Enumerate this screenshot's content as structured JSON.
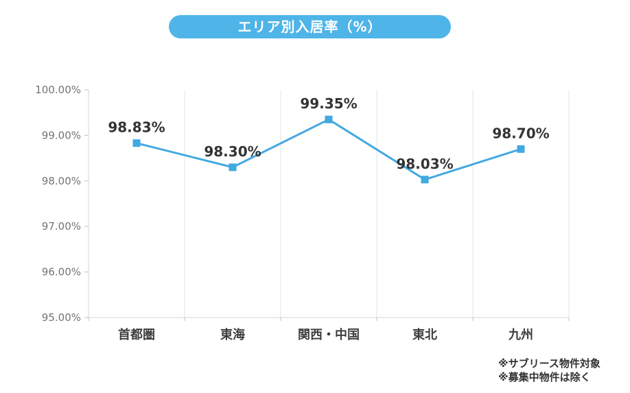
{
  "title": {
    "text": "エリア別入居率（%）"
  },
  "notes": [
    "※サブリース物件対象",
    "※募集中物件は除く"
  ],
  "chart_data": {
    "type": "line",
    "title": "エリア別入居率（%）",
    "xlabel": "",
    "ylabel": "",
    "categories": [
      "首都圏",
      "東海",
      "関西・中国",
      "東北",
      "九州"
    ],
    "values": [
      98.83,
      98.3,
      99.35,
      98.03,
      98.7
    ],
    "labels": [
      "98.83%",
      "98.30%",
      "99.35%",
      "98.03%",
      "98.70%"
    ],
    "ylim": [
      95,
      100
    ],
    "yticks": [
      {
        "value": 100,
        "label": "100.00%"
      },
      {
        "value": 99,
        "label": "99.00%"
      },
      {
        "value": 98,
        "label": "98.00%"
      },
      {
        "value": 97,
        "label": "97.00%"
      },
      {
        "value": 96,
        "label": "96.00%"
      },
      {
        "value": 95,
        "label": "95.00%"
      }
    ],
    "grid": "vertical-only",
    "legend": "none",
    "marker": "square",
    "colors": {
      "badge_background": "#4FB4E8",
      "badge_text": "#FFFFFF",
      "line": "#41A9E1",
      "marker": "#41A9E1",
      "data_label": "#333333",
      "axis_text": "#737373",
      "category_text": "#3D3D3D",
      "grid_line": "#E3E3E3",
      "axis_line": "#D4D4D4",
      "tick": "#BFBFBF",
      "note_text": "#333333"
    }
  }
}
